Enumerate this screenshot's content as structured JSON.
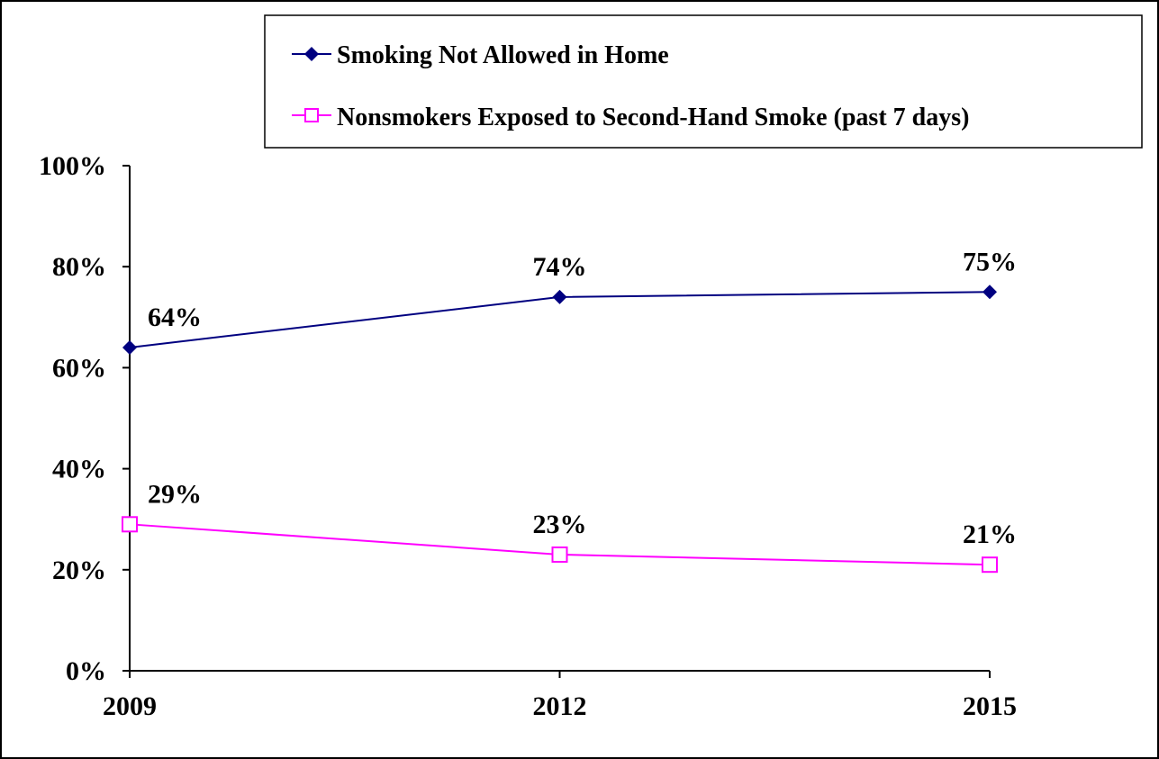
{
  "chart_data": {
    "type": "line",
    "title": "",
    "xlabel": "",
    "ylabel": "",
    "categories": [
      "2009",
      "2012",
      "2015"
    ],
    "ylim": [
      0,
      100
    ],
    "yticks": [
      0,
      20,
      40,
      60,
      80,
      100
    ],
    "ytick_labels": [
      "0%",
      "20%",
      "40%",
      "60%",
      "80%",
      "100%"
    ],
    "grid": false,
    "legend_position": "top-right",
    "series": [
      {
        "name": "Smoking Not Allowed in Home",
        "values": [
          64,
          74,
          75
        ],
        "labels": [
          "64%",
          "74%",
          "75%"
        ],
        "color": "#000080",
        "marker": "diamond-filled"
      },
      {
        "name": "Nonsmokers Exposed to Second-Hand Smoke (past 7 days)",
        "values": [
          29,
          23,
          21
        ],
        "labels": [
          "29%",
          "23%",
          "21%"
        ],
        "color": "#ff00ff",
        "marker": "square-open"
      }
    ]
  }
}
